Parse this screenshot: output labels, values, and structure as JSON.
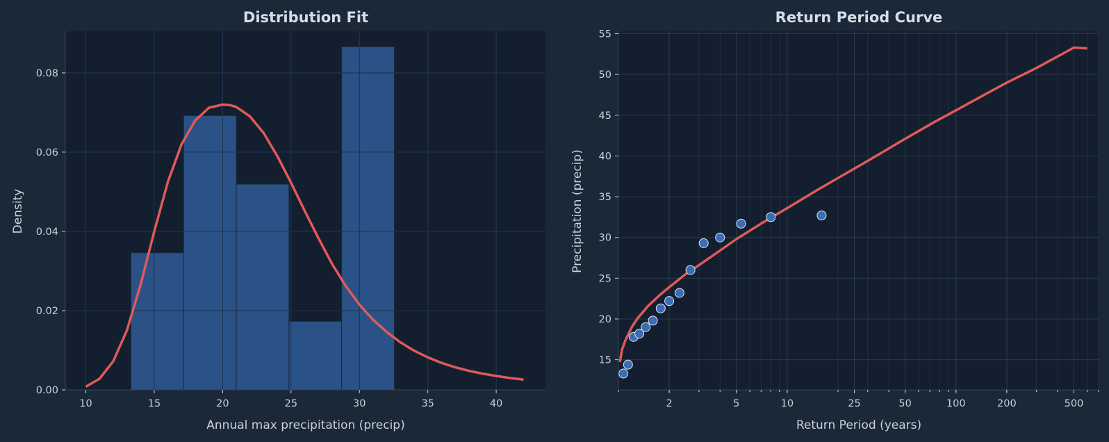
{
  "chart_data": [
    {
      "type": "bar",
      "title": "Distribution Fit",
      "xlabel": "Annual max precipitation (precip)",
      "ylabel": "Density",
      "xlim": [
        8.5,
        43.6
      ],
      "ylim": [
        0,
        0.0905
      ],
      "xticks": [
        10,
        15,
        20,
        25,
        30,
        35,
        40
      ],
      "yticks": [
        0.0,
        0.02,
        0.04,
        0.06,
        0.08
      ],
      "grid": true,
      "colors": {
        "bar": "#2a5287",
        "bar_edge": "#1a2a40",
        "curve": "#e05a5a"
      },
      "histogram": [
        {
          "x0": 13.3,
          "x1": 17.15,
          "density": 0.0346
        },
        {
          "x0": 17.15,
          "x1": 21.0,
          "density": 0.0692
        },
        {
          "x0": 21.0,
          "x1": 24.85,
          "density": 0.0519
        },
        {
          "x0": 24.85,
          "x1": 28.7,
          "density": 0.0173
        },
        {
          "x0": 28.7,
          "x1": 32.55,
          "density": 0.0866
        }
      ],
      "fit_curve": {
        "x": [
          10,
          11,
          12,
          13,
          14,
          15,
          16,
          17,
          18,
          19,
          20,
          20.5,
          21,
          22,
          23,
          24,
          25,
          26,
          27,
          28,
          29,
          30,
          31,
          32,
          33,
          34,
          35,
          36,
          37,
          38,
          39,
          40,
          41,
          42
        ],
        "y": [
          0.0008,
          0.0028,
          0.0072,
          0.015,
          0.0265,
          0.04,
          0.0525,
          0.062,
          0.068,
          0.0712,
          0.072,
          0.0719,
          0.0714,
          0.069,
          0.0648,
          0.059,
          0.0523,
          0.0452,
          0.0383,
          0.0318,
          0.0262,
          0.0215,
          0.0177,
          0.0146,
          0.012,
          0.0099,
          0.0082,
          0.0068,
          0.0057,
          0.0048,
          0.0041,
          0.0035,
          0.003,
          0.0026
        ]
      }
    },
    {
      "type": "scatter",
      "title": "Return Period Curve",
      "xlabel": "Return Period (years)",
      "ylabel": "Precipitation (precip)",
      "xscale": "log",
      "xlim": [
        1.0,
        700
      ],
      "ylim": [
        11.3,
        55.3
      ],
      "xticks": [
        2,
        5,
        10,
        25,
        50,
        100,
        200,
        500
      ],
      "yticks": [
        15,
        20,
        25,
        30,
        35,
        40,
        45,
        50,
        55
      ],
      "grid": true,
      "colors": {
        "points": "#3a6db5",
        "point_edge": "#dbe6f5",
        "curve": "#e05a5a"
      },
      "observed": [
        {
          "x": 1.07,
          "y": 13.3
        },
        {
          "x": 1.14,
          "y": 14.4
        },
        {
          "x": 1.23,
          "y": 17.8
        },
        {
          "x": 1.33,
          "y": 18.2
        },
        {
          "x": 1.45,
          "y": 19.0
        },
        {
          "x": 1.6,
          "y": 19.8
        },
        {
          "x": 1.78,
          "y": 21.3
        },
        {
          "x": 2.0,
          "y": 22.2
        },
        {
          "x": 2.3,
          "y": 23.2
        },
        {
          "x": 2.67,
          "y": 26.0
        },
        {
          "x": 3.2,
          "y": 29.3
        },
        {
          "x": 4.0,
          "y": 30.0
        },
        {
          "x": 5.33,
          "y": 31.7
        },
        {
          "x": 8.0,
          "y": 32.5
        },
        {
          "x": 16.0,
          "y": 32.7
        }
      ],
      "fit_curve": {
        "x": [
          1.02,
          1.05,
          1.1,
          1.2,
          1.3,
          1.5,
          1.75,
          2,
          2.5,
          3,
          4,
          5,
          7,
          10,
          15,
          20,
          30,
          50,
          75,
          100,
          150,
          200,
          300,
          500,
          600
        ],
        "y": [
          14.7,
          16.2,
          17.4,
          19.0,
          20.1,
          21.6,
          22.9,
          23.9,
          25.5,
          26.6,
          28.4,
          29.8,
          31.7,
          33.6,
          35.8,
          37.3,
          39.4,
          42.1,
          44.2,
          45.6,
          47.6,
          49.0,
          50.8,
          53.3,
          53.2
        ]
      }
    }
  ]
}
